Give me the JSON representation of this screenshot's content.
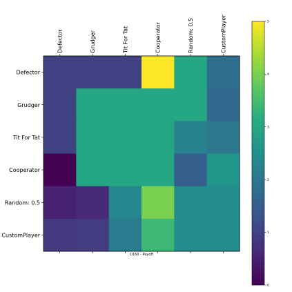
{
  "chart_data": {
    "type": "heatmap",
    "title": "",
    "xlabel": "D160 - Payoff",
    "ylabel": "",
    "rows": [
      "Defector",
      "Grudger",
      "Tit For Tat",
      "Cooperator",
      "Random: 0.5",
      "CustomPlayer"
    ],
    "cols": [
      "Defector",
      "Grudger",
      "Tit For Tat",
      "Cooperator",
      "Random: 0.5",
      "CustomPlayer"
    ],
    "values": [
      [
        1.0,
        1.0,
        1.0,
        5.0,
        3.0,
        1.8
      ],
      [
        1.0,
        3.0,
        3.0,
        3.0,
        3.0,
        1.7
      ],
      [
        1.0,
        3.0,
        3.0,
        3.0,
        2.2,
        2.0
      ],
      [
        0.0,
        3.0,
        3.0,
        3.0,
        1.5,
        2.6
      ],
      [
        0.5,
        0.6,
        2.3,
        4.0,
        2.4,
        2.4
      ],
      [
        0.85,
        0.9,
        2.1,
        3.4,
        2.4,
        2.4
      ]
    ],
    "colorbar": {
      "range": [
        0,
        5
      ],
      "ticks": [
        "0",
        "1",
        "2",
        "3",
        "4",
        "5"
      ],
      "colormap": "viridis"
    },
    "grid": false
  }
}
